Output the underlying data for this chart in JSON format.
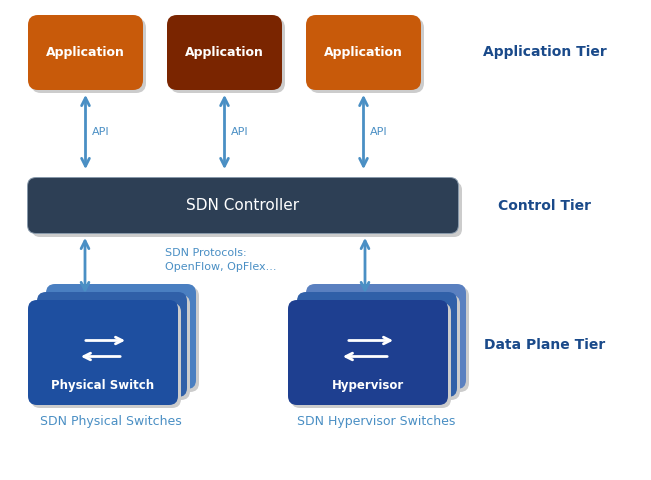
{
  "bg_color": "#ffffff",
  "app_box_color1": "#c85a0a",
  "app_box_color2": "#7a2500",
  "app_box_color3": "#c85a0a",
  "app_text_color": "#ffffff",
  "controller_box_color": "#2d3f55",
  "controller_border_color": "#8899aa",
  "controller_text_color": "#ffffff",
  "switch_colors": [
    "#4a7fc1",
    "#3060a8",
    "#1e4fa0"
  ],
  "hypervisor_colors": [
    "#5a80c0",
    "#3060a8",
    "#1e3f90"
  ],
  "arrow_color": "#4a8fc4",
  "tier_label_color": "#1a4a8a",
  "bottom_label_color": "#4a8fc4",
  "shadow_color": "#cccccc",
  "tier_labels": [
    "Application Tier",
    "Control Tier",
    "Data Plane Tier"
  ],
  "app_label": "Application",
  "controller_label": "SDN Controller",
  "protocol_label": "SDN Protocols:\nOpenFlow, OpFlex...",
  "api_label": "API",
  "physical_switch_label": "Physical Switch",
  "hypervisor_label": "Hypervisor",
  "bottom_label1": "SDN Physical Switches",
  "bottom_label2": "SDN Hypervisor Switches",
  "figsize": [
    6.51,
    4.8
  ],
  "dpi": 100
}
